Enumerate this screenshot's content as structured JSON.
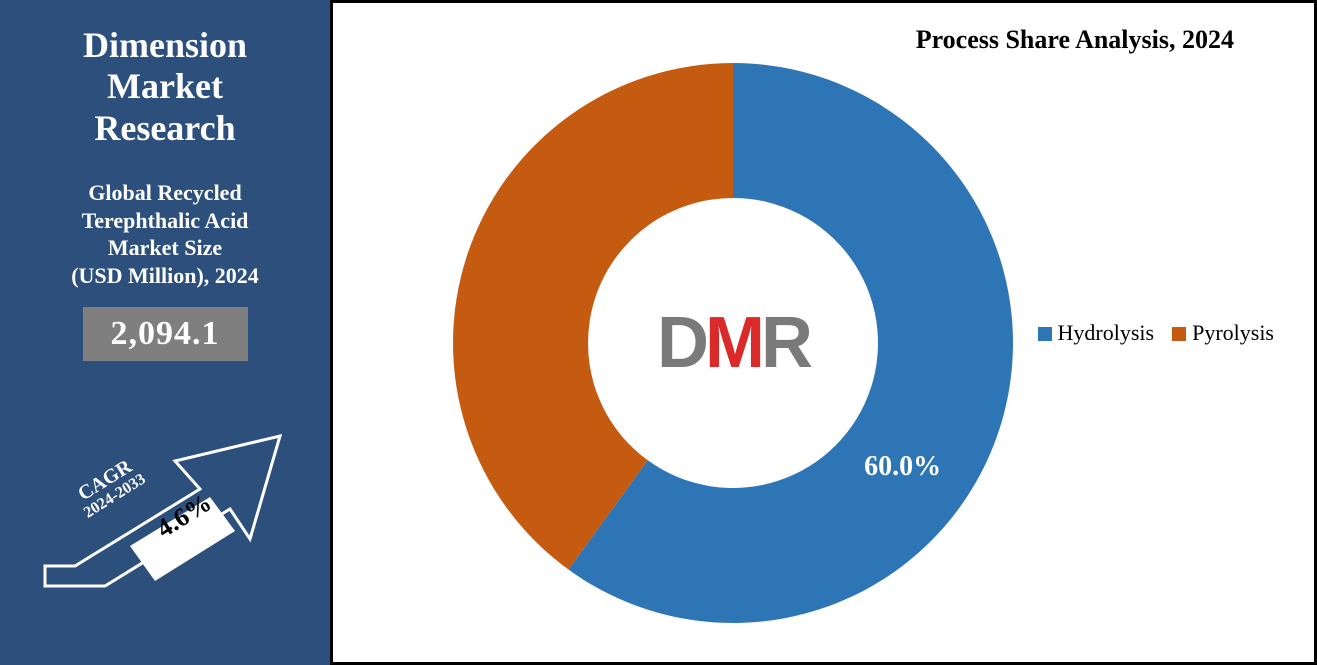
{
  "sidebar": {
    "brand_line1": "Dimension",
    "brand_line2": "Market",
    "brand_line3": "Research",
    "subtitle_line1": "Global Recycled",
    "subtitle_line2": "Terephthalic Acid",
    "subtitle_line3": "Market Size",
    "subtitle_line4": "(USD Million), 2024",
    "market_value": "2,094.1",
    "cagr_label": "CAGR",
    "cagr_years": "2024-2033",
    "cagr_value": "4.6%",
    "bg_color": "#2c4f7c",
    "value_box_bg": "#7f7f7f",
    "arrow_stroke": "#ffffff",
    "arrow_inner_fill": "#ffffff"
  },
  "chart": {
    "type": "donut",
    "title": "Process Share Analysis, 2024",
    "title_fontsize": 26,
    "series": [
      {
        "name": "Hydrolysis",
        "value": 60.0,
        "color": "#2e75b6",
        "show_label": true,
        "label": "60.0%"
      },
      {
        "name": "Pyrolysis",
        "value": 40.0,
        "color": "#c55a11",
        "show_label": false
      }
    ],
    "outer_radius": 280,
    "inner_radius": 145,
    "center_logo_text": "DMR",
    "center_logo_colors": {
      "D": "#7a7a7a",
      "M": "#da2a2a",
      "R": "#7a7a7a"
    },
    "background_color": "#ffffff",
    "border_color": "#000000",
    "label_fontsize": 28,
    "legend_fontsize": 22
  }
}
